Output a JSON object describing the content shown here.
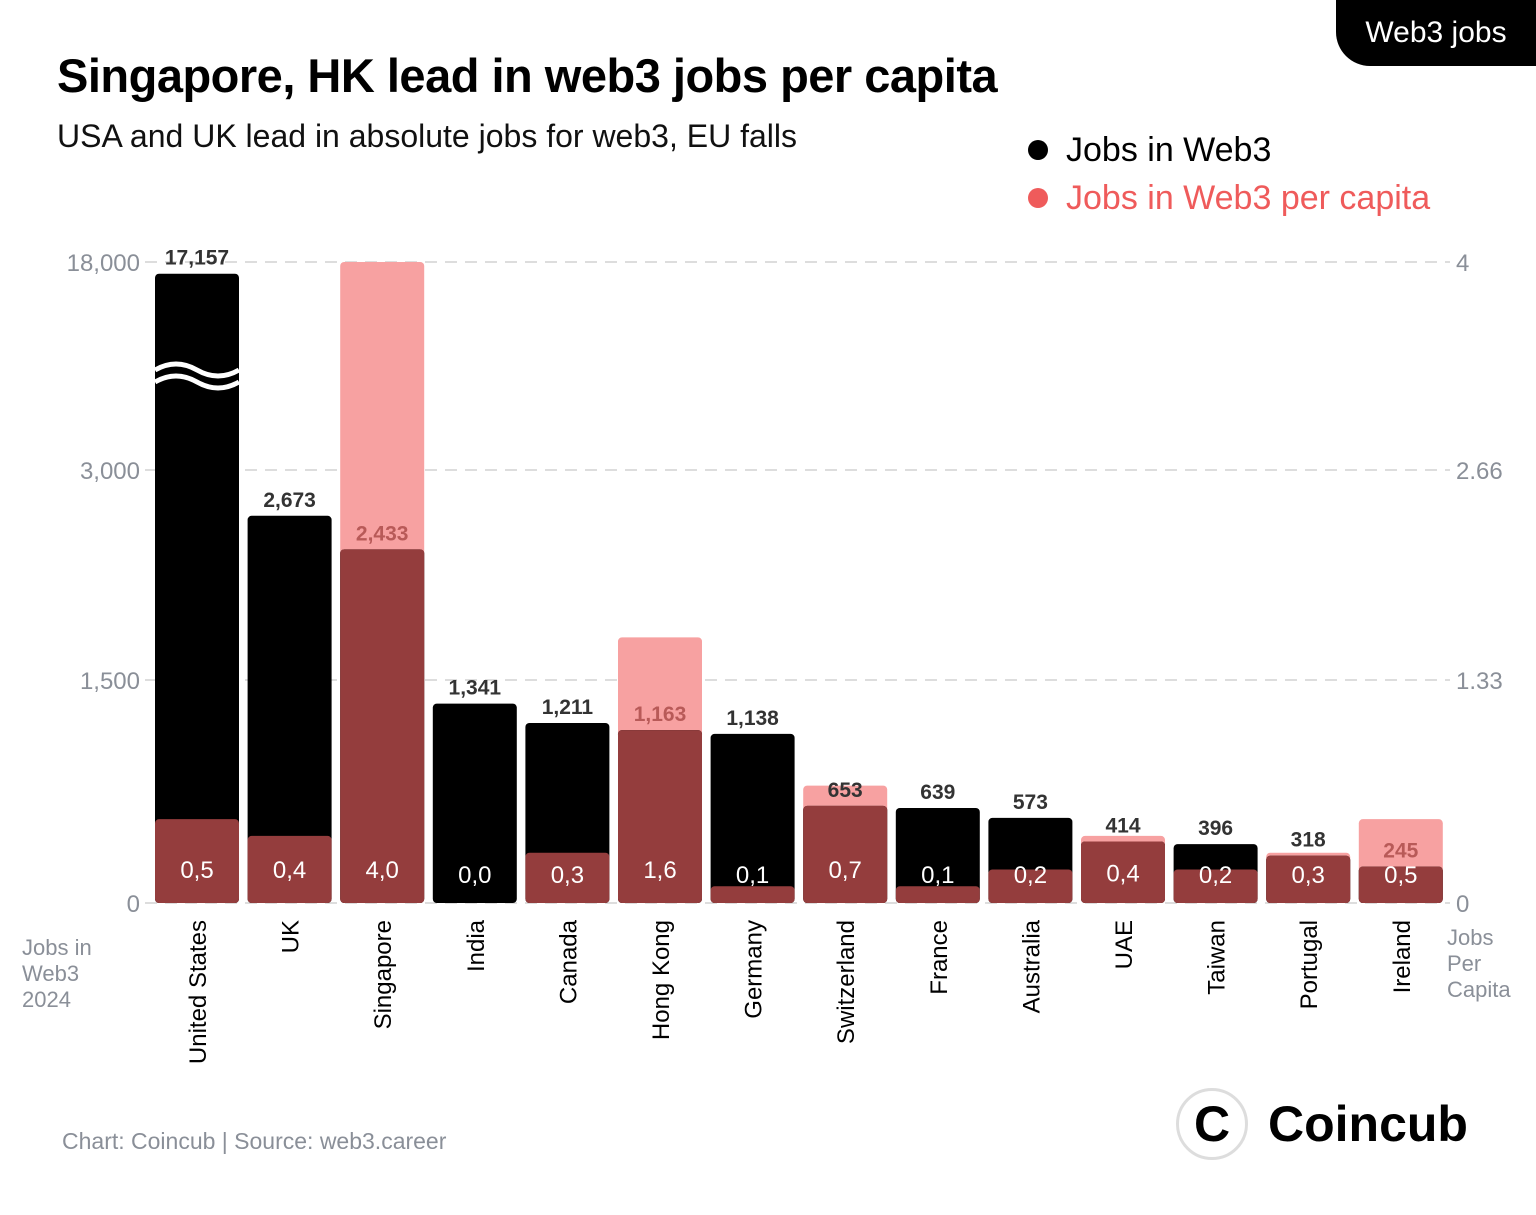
{
  "tag": "Web3 jobs",
  "footer": "Chart: Coincub | Source: web3.career",
  "logo": {
    "name": "Coincub",
    "mark": "C"
  },
  "colors": {
    "jobs": "#000000",
    "per_capita": "#f7a1a1",
    "overlap": "#943d3d",
    "per_capita_legend": "#ef5b5b",
    "grid": "#dddddd",
    "axis_text": "#8a8f98"
  },
  "chart_data": {
    "type": "bar",
    "title": "Singapore, HK lead in web3 jobs per capita",
    "subtitle": "USA and UK lead in absolute jobs for web3, EU falls",
    "legend": [
      "Jobs in Web3",
      "Jobs in Web3 per capita"
    ],
    "legend_position": "top-right",
    "grid": true,
    "categories": [
      "United States",
      "UK",
      "Singapore",
      "India",
      "Canada",
      "Hong Kong",
      "Germany",
      "Switzerland",
      "France",
      "Australia",
      "UAE",
      "Taiwan",
      "Portugal",
      "Ireland"
    ],
    "series": [
      {
        "name": "Jobs in Web3",
        "axis": "left",
        "values": [
          17157,
          2673,
          2433,
          1341,
          1211,
          1163,
          1138,
          653,
          639,
          573,
          414,
          396,
          318,
          245
        ],
        "labels": [
          "17,157",
          "2,673",
          "2,433",
          "1,341",
          "1,211",
          "1,163",
          "1,138",
          "653",
          "639",
          "573",
          "414",
          "396",
          "318",
          "245"
        ]
      },
      {
        "name": "Jobs in Web3 per capita",
        "axis": "right",
        "values": [
          0.5,
          0.4,
          4.0,
          0.0,
          0.3,
          1.6,
          0.1,
          0.7,
          0.1,
          0.2,
          0.4,
          0.2,
          0.3,
          0.5
        ],
        "labels": [
          "0,5",
          "0,4",
          "4,0",
          "0,0",
          "0,3",
          "1,6",
          "0,1",
          "0,7",
          "0,1",
          "0,2",
          "0,4",
          "0,2",
          "0,3",
          "0,5"
        ]
      }
    ],
    "left_axis": {
      "label": "Jobs in Web3 2024",
      "ticks": [
        0,
        1500,
        3000,
        18000
      ],
      "tick_labels": [
        "0",
        "1,500",
        "3,000",
        "18,000"
      ],
      "broken": true
    },
    "right_axis": {
      "label": "Jobs Per Capita",
      "ticks": [
        0,
        1.33,
        2.66,
        4
      ],
      "tick_labels": [
        "0",
        "1.33",
        "2.66",
        "4"
      ]
    }
  }
}
